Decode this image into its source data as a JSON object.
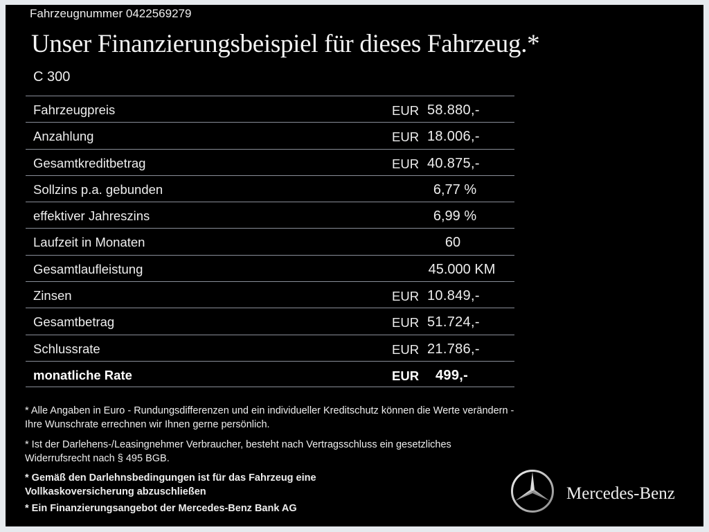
{
  "header": {
    "vehicle_number": "Fahrzeugnummer  0422569279",
    "title": "Unser Finanzierungsbeispiel für dieses Fahrzeug.*",
    "model": "C 300"
  },
  "rows": [
    {
      "label": "Fahrzeugpreis",
      "currency": "EUR",
      "value": "58.880,-"
    },
    {
      "label": "Anzahlung",
      "currency": "EUR",
      "value": "18.006,-"
    },
    {
      "label": "Gesamtkreditbetrag",
      "currency": "EUR",
      "value": "40.875,-"
    },
    {
      "label": "Sollzins p.a. gebunden",
      "value": "6,77 %"
    },
    {
      "label": "effektiver Jahreszins",
      "value": "6,99 %"
    },
    {
      "label": "Laufzeit in Monaten",
      "value": "60"
    },
    {
      "label": "Gesamtlaufleistung",
      "value": "45.000 KM"
    },
    {
      "label": "Zinsen",
      "currency": "EUR",
      "value": "10.849,-"
    },
    {
      "label": "Gesamtbetrag",
      "currency": "EUR",
      "value": "51.724,-"
    },
    {
      "label": "Schlussrate",
      "currency": "EUR",
      "value": "21.786,-"
    },
    {
      "label": "monatliche Rate",
      "currency": "EUR",
      "value": "499,-"
    }
  ],
  "notes": [
    "* Alle Angaben in Euro - Rundungsdifferenzen und ein individueller Kreditschutz können die Werte verändern - Ihre Wunschrate errechnen wir Ihnen gerne persönlich.",
    "* Ist der Darlehens-/Leasingnehmer Verbraucher, besteht nach Vertragsschluss ein gesetzliches Widerrufsrecht nach § 495 BGB.",
    "* Gemäß den Darlehnsbedingungen ist für das Fahrzeug eine Vollkaskoversicherung abzuschließen",
    "* Ein Finanzierungsangebot der Mercedes-Benz Bank AG"
  ],
  "brand": {
    "name": "Mercedes-Benz",
    "icon": "three-pointed-star-icon"
  }
}
